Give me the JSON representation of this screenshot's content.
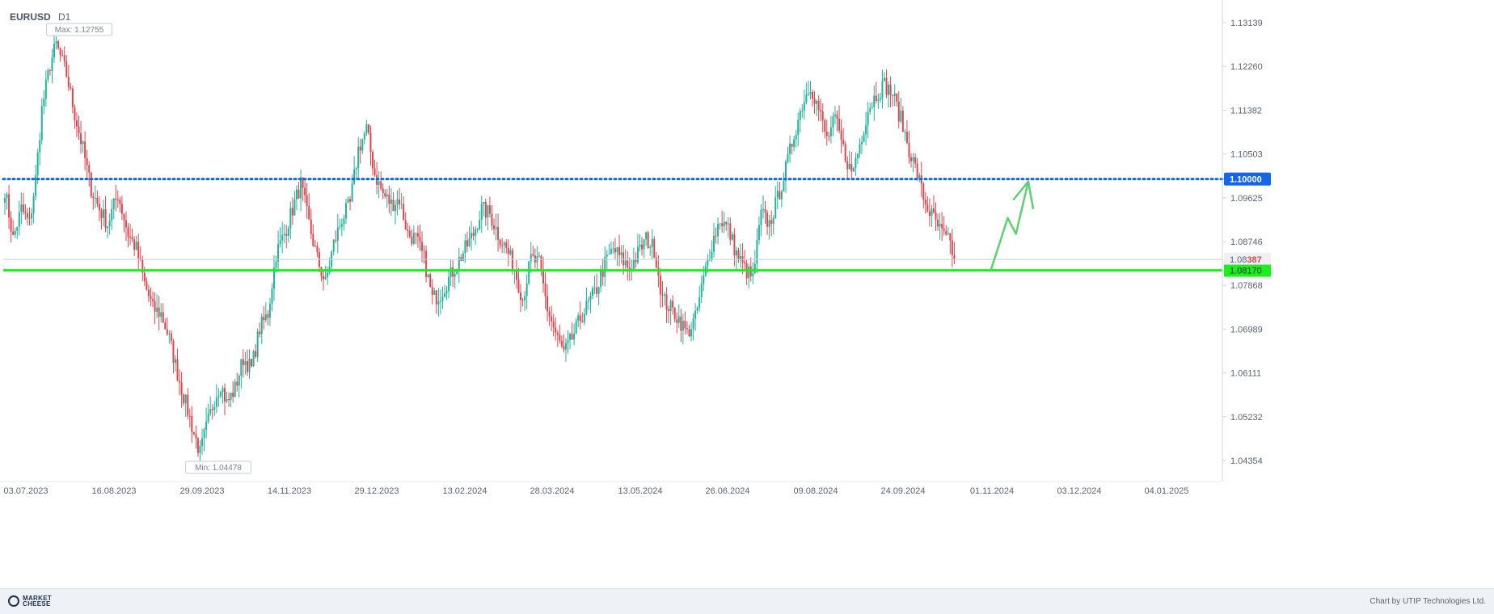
{
  "header": {
    "symbol": "EURUSD",
    "timeframe": "D1"
  },
  "footer": {
    "brand_line1": "MARKET",
    "brand_line2": "CHEESE",
    "credit": "Chart by UTIP Technologies Ltd."
  },
  "colors": {
    "bull": "#22b29a",
    "bear": "#e0454d",
    "support": "#19f01c",
    "resistance": "#1565e8",
    "forecast": "#5dd070",
    "grid": "#e6e9ee",
    "axis_text": "#5a6475"
  },
  "chart_data": {
    "type": "candlestick",
    "symbol": "EURUSD",
    "timeframe": "D1",
    "y_ticks": [
      1.13139,
      1.1226,
      1.11382,
      1.10503,
      1.09625,
      1.08746,
      1.07868,
      1.06989,
      1.06111,
      1.05232,
      1.04354
    ],
    "y_tick_labels": [
      "1.13139",
      "1.12260",
      "1.11382",
      "1.10503",
      "1.09625",
      "1.08746",
      "1.07868",
      "1.06989",
      "1.06111",
      "1.05232",
      "1.04354"
    ],
    "ylim": [
      1.0398,
      1.1353
    ],
    "x_labels": [
      "03.07.2023",
      "16.08.2023",
      "29.09.2023",
      "14.11.2023",
      "29.12.2023",
      "13.02.2024",
      "28.03.2024",
      "13.05.2024",
      "26.06.2024",
      "09.08.2024",
      "24.09.2024",
      "01.11.2024",
      "03.12.2024",
      "04.01.2025"
    ],
    "max_label": "Max: 1.12755",
    "min_label": "Min: 1.04478",
    "max_value": 1.12755,
    "min_value": 1.04478,
    "resistance": {
      "value": 1.1,
      "label": "1.10000",
      "style": "dotted"
    },
    "support": {
      "value": 1.0817,
      "label": "1.08170",
      "style": "solid"
    },
    "current": {
      "value": 1.08387,
      "label_prefix": "1.08",
      "label_suffix": "387"
    },
    "price_path": [
      [
        0,
        1.098
      ],
      [
        4,
        1.088
      ],
      [
        8,
        1.094
      ],
      [
        12,
        1.091
      ],
      [
        15,
        1.1
      ],
      [
        18,
        1.114
      ],
      [
        22,
        1.123
      ],
      [
        25,
        1.127
      ],
      [
        30,
        1.121
      ],
      [
        34,
        1.113
      ],
      [
        38,
        1.106
      ],
      [
        42,
        1.098
      ],
      [
        46,
        1.094
      ],
      [
        50,
        1.091
      ],
      [
        55,
        1.097
      ],
      [
        60,
        1.089
      ],
      [
        64,
        1.086
      ],
      [
        68,
        1.079
      ],
      [
        72,
        1.074
      ],
      [
        76,
        1.073
      ],
      [
        80,
        1.068
      ],
      [
        84,
        1.061
      ],
      [
        88,
        1.055
      ],
      [
        92,
        1.049
      ],
      [
        95,
        1.045
      ],
      [
        98,
        1.05
      ],
      [
        102,
        1.056
      ],
      [
        105,
        1.059
      ],
      [
        108,
        1.055
      ],
      [
        112,
        1.058
      ],
      [
        116,
        1.064
      ],
      [
        120,
        1.062
      ],
      [
        124,
        1.07
      ],
      [
        128,
        1.073
      ],
      [
        132,
        1.085
      ],
      [
        136,
        1.089
      ],
      [
        140,
        1.094
      ],
      [
        144,
        1.099
      ],
      [
        148,
        1.091
      ],
      [
        152,
        1.084
      ],
      [
        156,
        1.079
      ],
      [
        160,
        1.087
      ],
      [
        164,
        1.092
      ],
      [
        168,
        1.095
      ],
      [
        172,
        1.106
      ],
      [
        176,
        1.11
      ],
      [
        180,
        1.101
      ],
      [
        184,
        1.097
      ],
      [
        188,
        1.095
      ],
      [
        192,
        1.096
      ],
      [
        196,
        1.089
      ],
      [
        200,
        1.088
      ],
      [
        204,
        1.084
      ],
      [
        208,
        1.076
      ],
      [
        212,
        1.077
      ],
      [
        216,
        1.08
      ],
      [
        220,
        1.083
      ],
      [
        224,
        1.086
      ],
      [
        228,
        1.089
      ],
      [
        232,
        1.094
      ],
      [
        236,
        1.093
      ],
      [
        240,
        1.089
      ],
      [
        244,
        1.086
      ],
      [
        248,
        1.082
      ],
      [
        252,
        1.076
      ],
      [
        256,
        1.084
      ],
      [
        260,
        1.083
      ],
      [
        264,
        1.074
      ],
      [
        268,
        1.069
      ],
      [
        272,
        1.065
      ],
      [
        276,
        1.068
      ],
      [
        280,
        1.072
      ],
      [
        284,
        1.075
      ],
      [
        288,
        1.078
      ],
      [
        292,
        1.083
      ],
      [
        296,
        1.086
      ],
      [
        300,
        1.084
      ],
      [
        304,
        1.082
      ],
      [
        308,
        1.085
      ],
      [
        312,
        1.088
      ],
      [
        316,
        1.086
      ],
      [
        320,
        1.076
      ],
      [
        324,
        1.074
      ],
      [
        328,
        1.072
      ],
      [
        332,
        1.069
      ],
      [
        336,
        1.072
      ],
      [
        340,
        1.08
      ],
      [
        344,
        1.087
      ],
      [
        348,
        1.092
      ],
      [
        352,
        1.09
      ],
      [
        356,
        1.085
      ],
      [
        360,
        1.082
      ],
      [
        364,
        1.08
      ],
      [
        368,
        1.093
      ],
      [
        372,
        1.091
      ],
      [
        376,
        1.096
      ],
      [
        380,
        1.102
      ],
      [
        384,
        1.109
      ],
      [
        388,
        1.115
      ],
      [
        392,
        1.119
      ],
      [
        396,
        1.114
      ],
      [
        400,
        1.108
      ],
      [
        404,
        1.112
      ],
      [
        408,
        1.106
      ],
      [
        412,
        1.101
      ],
      [
        416,
        1.107
      ],
      [
        420,
        1.114
      ],
      [
        424,
        1.117
      ],
      [
        428,
        1.119
      ],
      [
        432,
        1.117
      ],
      [
        436,
        1.112
      ],
      [
        440,
        1.106
      ],
      [
        444,
        1.101
      ],
      [
        448,
        1.095
      ],
      [
        452,
        1.092
      ],
      [
        456,
        1.089
      ],
      [
        460,
        1.087
      ],
      [
        462,
        1.084
      ]
    ],
    "forecast_arrow": [
      [
        1.082,
        480
      ],
      [
        1.0922,
        488
      ],
      [
        1.089,
        492
      ],
      [
        1.0995,
        498
      ]
    ]
  }
}
